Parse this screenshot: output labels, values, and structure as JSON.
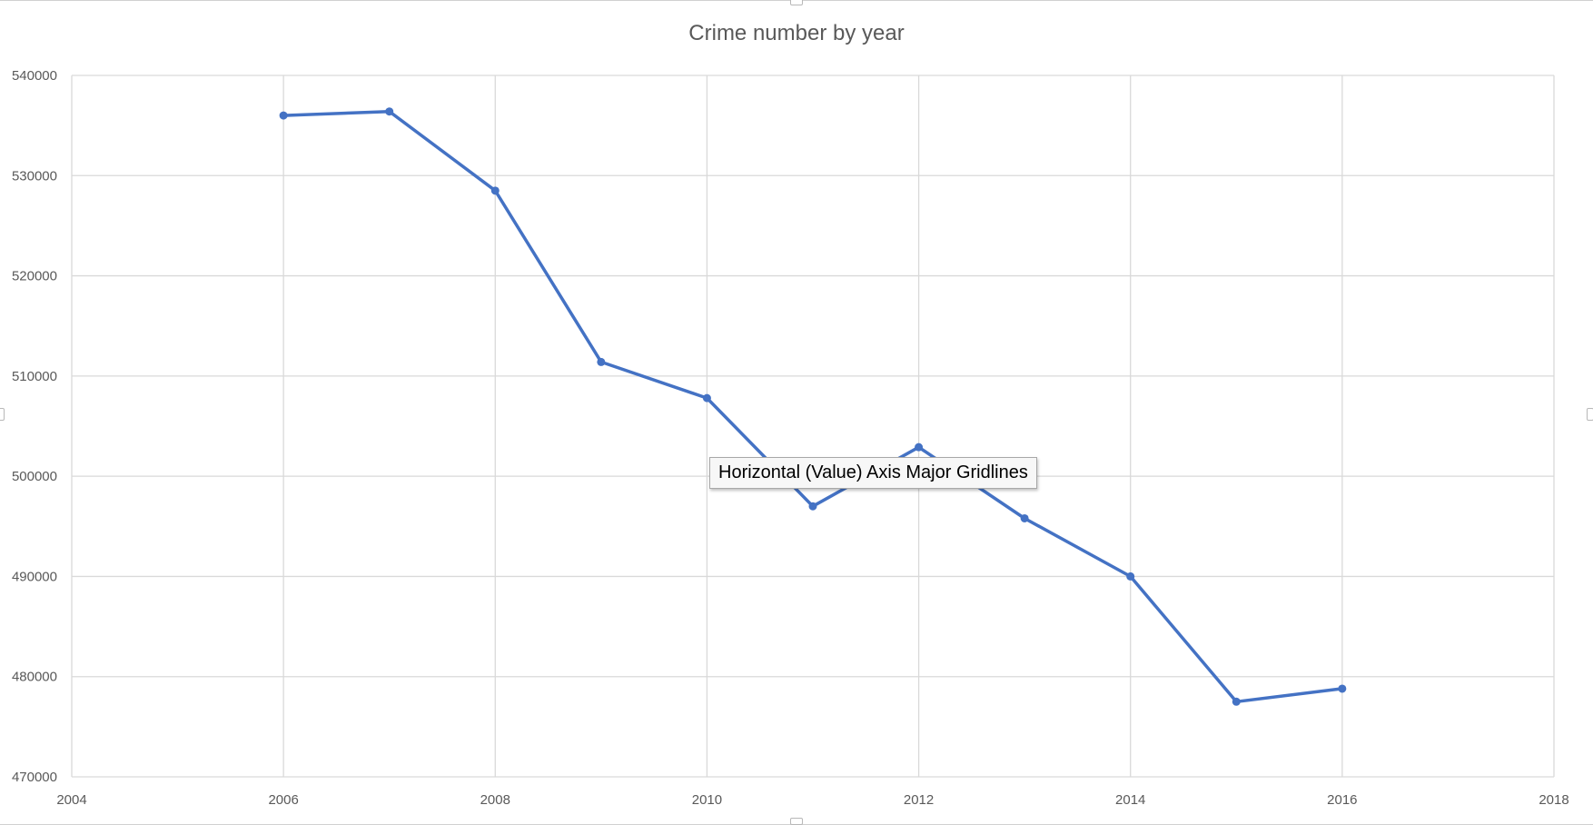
{
  "tooltip": {
    "text": "Horizontal (Value) Axis Major Gridlines"
  },
  "colors": {
    "series": "#4472C4",
    "grid": "#d9d9d9",
    "text": "#595959"
  },
  "chart_data": {
    "type": "scatter",
    "title": "Crime number by year",
    "xlabel": "",
    "ylabel": "",
    "xlim": [
      2004,
      2018
    ],
    "ylim": [
      470000,
      540000
    ],
    "x_ticks": [
      2004,
      2006,
      2008,
      2010,
      2012,
      2014,
      2016,
      2018
    ],
    "y_ticks": [
      470000,
      480000,
      490000,
      500000,
      510000,
      520000,
      530000,
      540000
    ],
    "grid": true,
    "legend": "none",
    "series": [
      {
        "x": [
          2006,
          2007,
          2008,
          2009,
          2010,
          2011,
          2012,
          2013,
          2014,
          2015,
          2016
        ],
        "y": [
          536000,
          536400,
          528500,
          511400,
          507800,
          497000,
          502900,
          495800,
          490000,
          477500,
          478800
        ]
      }
    ]
  }
}
